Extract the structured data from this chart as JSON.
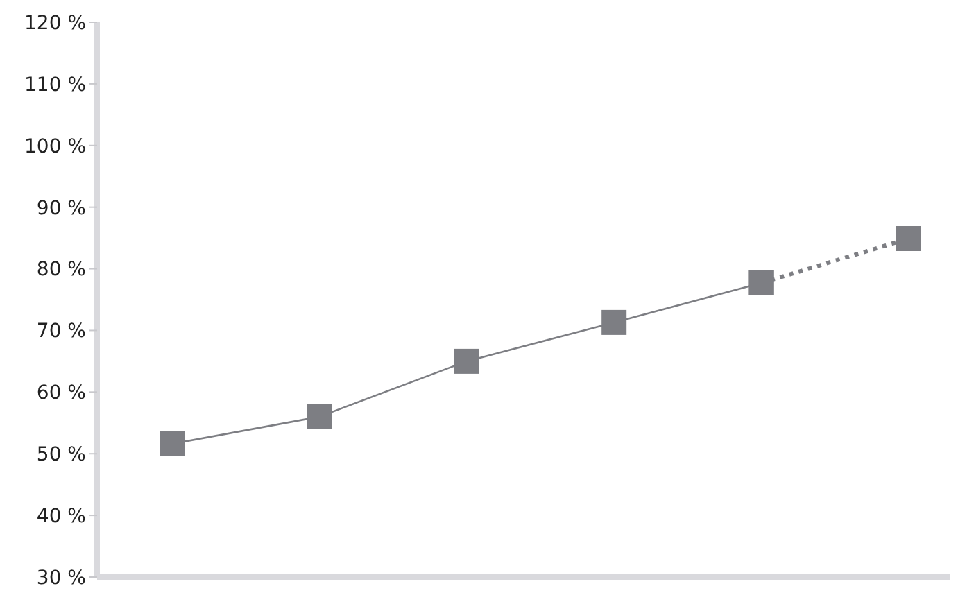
{
  "chart_data": {
    "type": "line",
    "categories": [
      null,
      null,
      null,
      null,
      null,
      null
    ],
    "series": [
      {
        "color": "#7d7e83",
        "values": [
          51.6,
          56,
          65,
          71.3,
          77.7,
          null
        ],
        "marker": "square",
        "line_style": "solid"
      },
      {
        "color": "#7d7e83",
        "values": [
          null,
          null,
          null,
          null,
          77.7,
          84.9
        ],
        "marker": "square",
        "line_style": "dotted"
      }
    ],
    "ylim": [
      30,
      120
    ],
    "yticks": [
      {
        "value": 30,
        "label": "30 %"
      },
      {
        "value": 40,
        "label": "40 %"
      },
      {
        "value": 50,
        "label": "50 %"
      },
      {
        "value": 60,
        "label": "60 %"
      },
      {
        "value": 70,
        "label": "70 %"
      },
      {
        "value": 80,
        "label": "80 %"
      },
      {
        "value": 90,
        "label": "90 %"
      },
      {
        "value": 100,
        "label": "100 %"
      },
      {
        "value": 110,
        "label": "110 %"
      },
      {
        "value": 120,
        "label": "120 %"
      }
    ],
    "grid": false,
    "legend": false
  }
}
